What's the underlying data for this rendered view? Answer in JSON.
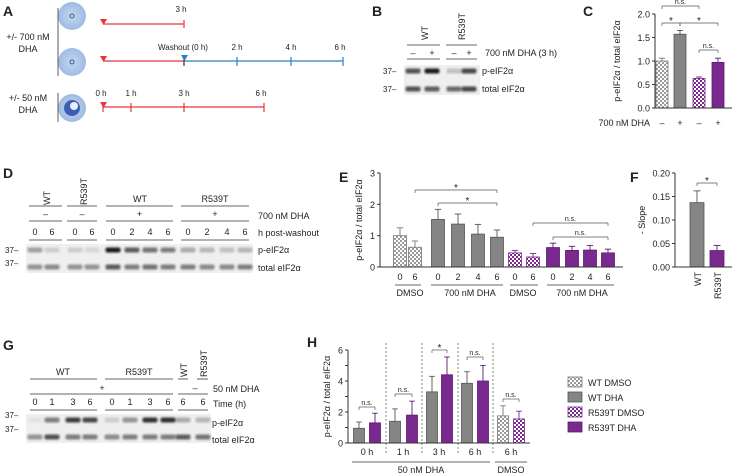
{
  "colors": {
    "timeline_red": "#e8343a",
    "timeline_blue": "#2f7fc1",
    "wt_grey": "#858585",
    "r539t_purple": "#7a2a8e"
  },
  "panels": {
    "A": {
      "label": "A",
      "groups": [
        {
          "dose": "+/- 700 nM",
          "drug": "DHA"
        },
        {
          "dose": "+/- 50 nM",
          "drug": "DHA"
        }
      ],
      "timelines": [
        {
          "ticks": [
            "3 h"
          ]
        },
        {
          "washout": "Washout (0 h)",
          "ticks": [
            "2 h",
            "4 h",
            "6 h"
          ]
        },
        {
          "ticks": [
            "0 h",
            "1 h",
            "3 h",
            "6 h"
          ]
        }
      ]
    },
    "B": {
      "label": "B",
      "lanes": [
        "WT",
        "R539T"
      ],
      "treatment": [
        "–",
        "+",
        "–",
        "+"
      ],
      "treatment_label": "700 nM DHA (3 h)",
      "mw": [
        "37–",
        "37–"
      ],
      "bands": [
        "p-eIF2α",
        "total eIF2α"
      ]
    },
    "C": {
      "label": "C"
    },
    "D": {
      "label": "D",
      "rotated_lanes": [
        "WT",
        "R539T"
      ],
      "groups": [
        "WT",
        "R539T"
      ],
      "treatment": [
        "–",
        "–",
        "+",
        "+"
      ],
      "treatment_label": "700 nM DHA",
      "times": [
        "0",
        "6",
        "0",
        "6",
        "0",
        "2",
        "4",
        "6",
        "0",
        "2",
        "4",
        "6"
      ],
      "time_label": "h post-washout",
      "mw": [
        "37–",
        "37–"
      ],
      "bands": [
        "p-eIF2α",
        "total eIF2α"
      ]
    },
    "E": {
      "label": "E"
    },
    "F": {
      "label": "F"
    },
    "G": {
      "label": "G",
      "groups": [
        "WT",
        "R539T"
      ],
      "rotated_lanes": [
        "WT",
        "R539T"
      ],
      "treatment": [
        "+",
        "–"
      ],
      "treatment_label": "50 nM DHA",
      "times": [
        "0",
        "1",
        "3",
        "6",
        "0",
        "1",
        "3",
        "6",
        "6",
        "6"
      ],
      "time_label": "Time (h)",
      "mw": [
        "37–",
        "37–"
      ],
      "bands": [
        "p-eIF2α",
        "total eIF2α"
      ]
    },
    "H": {
      "label": "H"
    }
  },
  "chart_data": [
    {
      "panel": "C",
      "type": "bar",
      "ylabel": "p-eIF2α / total eIF2α",
      "ylim": [
        0,
        2.0
      ],
      "yticks": [
        "0.0",
        "0.5",
        "1.0",
        "1.5",
        "2.0"
      ],
      "xlabel": "700 nM DHA",
      "xticks": [
        "–",
        "+",
        "–",
        "+"
      ],
      "bars": [
        {
          "fill": "WT DMSO",
          "value": 1.0,
          "error": 0.06
        },
        {
          "fill": "WT DHA",
          "value": 1.57,
          "error": 0.08
        },
        {
          "fill": "R539T DMSO",
          "value": 0.63,
          "error": 0.03
        },
        {
          "fill": "R539T DHA",
          "value": 0.97,
          "error": 0.09
        }
      ],
      "brackets": [
        {
          "from": 0,
          "to": 2,
          "label": "n.s."
        },
        {
          "from": 0,
          "to": 1,
          "label": "*"
        },
        {
          "from": 1,
          "to": 3,
          "label": "*"
        },
        {
          "from": 2,
          "to": 3,
          "label": "n.s."
        }
      ]
    },
    {
      "panel": "E",
      "type": "bar",
      "ylabel": "p-eIF2α / total eIF2α",
      "ylim": [
        0,
        3
      ],
      "yticks": [
        "0",
        "1",
        "2",
        "3"
      ],
      "xticks": [
        "0",
        "6",
        "0",
        "2",
        "4",
        "6",
        "0",
        "6",
        "0",
        "2",
        "4",
        "6"
      ],
      "groups": [
        "DMSO",
        "700 nM DHA",
        "DMSO",
        "700 nM DHA"
      ],
      "bars": [
        {
          "fill": "WT DMSO",
          "value": 1.0,
          "error": 0.25
        },
        {
          "fill": "WT DMSO",
          "value": 0.63,
          "error": 0.2
        },
        {
          "fill": "WT DHA",
          "value": 1.52,
          "error": 0.32
        },
        {
          "fill": "WT DHA",
          "value": 1.37,
          "error": 0.32
        },
        {
          "fill": "WT DHA",
          "value": 1.05,
          "error": 0.31
        },
        {
          "fill": "WT DHA",
          "value": 0.95,
          "error": 0.23
        },
        {
          "fill": "R539T DMSO",
          "value": 0.45,
          "error": 0.08
        },
        {
          "fill": "R539T DMSO",
          "value": 0.32,
          "error": 0.11
        },
        {
          "fill": "R539T DHA",
          "value": 0.62,
          "error": 0.14
        },
        {
          "fill": "R539T DHA",
          "value": 0.53,
          "error": 0.13
        },
        {
          "fill": "R539T DHA",
          "value": 0.54,
          "error": 0.15
        },
        {
          "fill": "R539T DHA",
          "value": 0.45,
          "error": 0.12
        }
      ],
      "brackets": [
        {
          "from": 1,
          "to": 5,
          "label": "*"
        },
        {
          "from": 2,
          "to": 5,
          "label": "*"
        },
        {
          "from": 7,
          "to": 11,
          "label": "n.s."
        },
        {
          "from": 8,
          "to": 11,
          "label": "n.s."
        }
      ]
    },
    {
      "panel": "F",
      "type": "bar",
      "ylabel": "- Slope",
      "ylim": [
        0,
        0.2
      ],
      "yticks": [
        "0.00",
        "0.05",
        "0.10",
        "0.15",
        "0.20"
      ],
      "xticks": [
        "WT",
        "R539T"
      ],
      "bars": [
        {
          "fill": "WT DHA",
          "value": 0.137,
          "error": 0.025
        },
        {
          "fill": "R539T DHA",
          "value": 0.035,
          "error": 0.011
        }
      ],
      "brackets": [
        {
          "from": 0,
          "to": 1,
          "label": "*"
        }
      ]
    },
    {
      "panel": "H",
      "type": "bar",
      "ylabel": "p-eIF2α / total eIF2α",
      "ylim": [
        0,
        6
      ],
      "yticks": [
        "0",
        "2",
        "4",
        "6"
      ],
      "xticks": [
        "0 h",
        "1 h",
        "3 h",
        "6 h",
        "6 h"
      ],
      "groups": [
        "50 nM DHA",
        "DMSO"
      ],
      "bars": [
        {
          "fill": "WT DHA",
          "value": 0.95,
          "error": 0.4
        },
        {
          "fill": "R539T DHA",
          "value": 1.3,
          "error": 0.62
        },
        {
          "fill": "WT DHA",
          "value": 1.4,
          "error": 0.8
        },
        {
          "fill": "R539T DHA",
          "value": 1.8,
          "error": 0.9
        },
        {
          "fill": "WT DHA",
          "value": 3.3,
          "error": 1.0
        },
        {
          "fill": "R539T DHA",
          "value": 4.4,
          "error": 1.15
        },
        {
          "fill": "WT DHA",
          "value": 3.85,
          "error": 0.75
        },
        {
          "fill": "R539T DHA",
          "value": 4.0,
          "error": 1.0
        },
        {
          "fill": "WT DMSO",
          "value": 1.75,
          "error": 0.65
        },
        {
          "fill": "R539T DMSO",
          "value": 1.55,
          "error": 0.5
        }
      ],
      "brackets": [
        {
          "from": 0,
          "to": 1,
          "label": "n.s."
        },
        {
          "from": 2,
          "to": 3,
          "label": "n.s."
        },
        {
          "from": 4,
          "to": 5,
          "label": "*"
        },
        {
          "from": 6,
          "to": 7,
          "label": "n.s."
        },
        {
          "from": 8,
          "to": 9,
          "label": "n.s."
        }
      ],
      "legend": [
        "WT DMSO",
        "WT DHA",
        "R539T  DMSO",
        "R539T DHA"
      ],
      "legend_fills": [
        "WT DMSO",
        "WT DHA",
        "R539T DMSO",
        "R539T DHA"
      ],
      "legend_position": "right"
    }
  ]
}
